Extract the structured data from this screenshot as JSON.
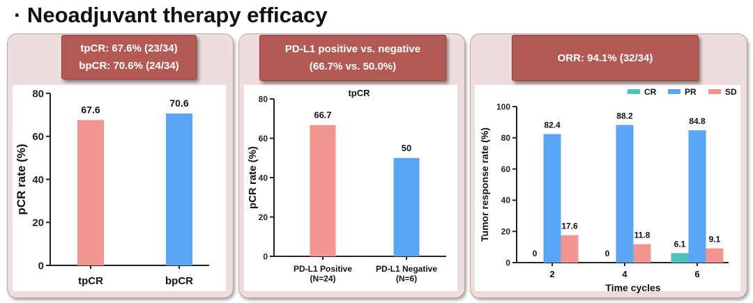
{
  "page_title": "· Neoadjuvant therapy efficacy",
  "panels": [
    {
      "banner_lines": [
        "tpCR: 67.6%  (23/34)",
        "bpCR: 70.6% (24/34)"
      ]
    },
    {
      "banner_lines": [
        "PD-L1 positive vs. negative",
        "(66.7% vs. 50.0%)"
      ]
    },
    {
      "banner_lines": [
        "ORR: 94.1% (32/34)"
      ]
    }
  ],
  "colors": {
    "pink": "#f0968e",
    "blue": "#5aa5f5",
    "teal": "#4ec2bd",
    "banner": "#b35a55",
    "panel": "#efdcdc"
  },
  "chart_data": [
    {
      "type": "bar",
      "title": "",
      "categories": [
        "tpCR",
        "bpCR"
      ],
      "values": [
        67.6,
        70.6
      ],
      "data_labels": [
        "67.6",
        "70.6"
      ],
      "bar_colors": [
        "#f0968e",
        "#5aa5f5"
      ],
      "xlabel": "",
      "ylabel": "pCR rate (%)",
      "ylim": [
        0,
        80
      ],
      "yticks": [
        0,
        20,
        40,
        60,
        80
      ],
      "grid": false
    },
    {
      "type": "bar",
      "title": "tpCR",
      "categories": [
        [
          "PD-L1 Positive",
          "(N=24)"
        ],
        [
          "PD-L1 Negative",
          "(N=6)"
        ]
      ],
      "values": [
        66.7,
        50
      ],
      "data_labels": [
        "66.7",
        "50"
      ],
      "bar_colors": [
        "#f0968e",
        "#5aa5f5"
      ],
      "xlabel": "",
      "ylabel": "pCR rate (%)",
      "ylim": [
        0,
        80
      ],
      "yticks": [
        0,
        20,
        40,
        60,
        80
      ],
      "grid": false
    },
    {
      "type": "bar",
      "title": "",
      "categories": [
        "2",
        "4",
        "6"
      ],
      "series": [
        {
          "name": "CR",
          "color": "#4ec2bd",
          "values": [
            0,
            0,
            6.1
          ],
          "labels": [
            "0",
            "0",
            "6.1"
          ]
        },
        {
          "name": "PR",
          "color": "#5aa5f5",
          "values": [
            82.4,
            88.2,
            84.8
          ],
          "labels": [
            "82.4",
            "88.2",
            "84.8"
          ]
        },
        {
          "name": "SD",
          "color": "#f0968e",
          "values": [
            17.6,
            11.8,
            9.1
          ],
          "labels": [
            "17.6",
            "11.8",
            "9.1"
          ]
        }
      ],
      "xlabel": "Time cycles",
      "ylabel": "Tumor response rate (%)",
      "ylim": [
        0,
        100
      ],
      "yticks": [
        0,
        20,
        40,
        60,
        80,
        100
      ],
      "legend": "top-right",
      "grid": false
    }
  ]
}
